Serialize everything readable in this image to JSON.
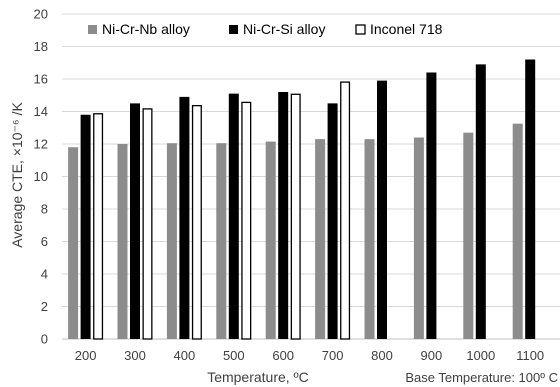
{
  "chart_data": {
    "type": "bar",
    "categories": [
      "200",
      "300",
      "400",
      "500",
      "600",
      "700",
      "800",
      "900",
      "1000",
      "1100"
    ],
    "series": [
      {
        "name": "Ni-Cr-Nb alloy",
        "color": "#8c8c8c",
        "fill": true,
        "values": [
          11.8,
          12.0,
          12.05,
          12.05,
          12.15,
          12.3,
          12.3,
          12.4,
          12.7,
          13.25
        ]
      },
      {
        "name": "Ni-Cr-Si alloy",
        "color": "#000000",
        "fill": true,
        "values": [
          13.8,
          14.5,
          14.9,
          15.1,
          15.2,
          14.5,
          15.9,
          16.4,
          16.9,
          17.2
        ]
      },
      {
        "name": "Inconel 718",
        "color": "#000000",
        "fill": false,
        "values": [
          13.9,
          14.2,
          14.4,
          14.6,
          15.1,
          15.85,
          null,
          null,
          null,
          null
        ]
      }
    ],
    "xlabel": "Temperature, ºC",
    "ylabel": "Average CTE, ×10⁻⁶ /K",
    "ylim": [
      0,
      20
    ],
    "yticks": [
      0,
      2,
      4,
      6,
      8,
      10,
      12,
      14,
      16,
      18,
      20
    ],
    "grid": "horizontal",
    "legend_position": "top",
    "annotation": "Base Temperature: 100º C"
  }
}
